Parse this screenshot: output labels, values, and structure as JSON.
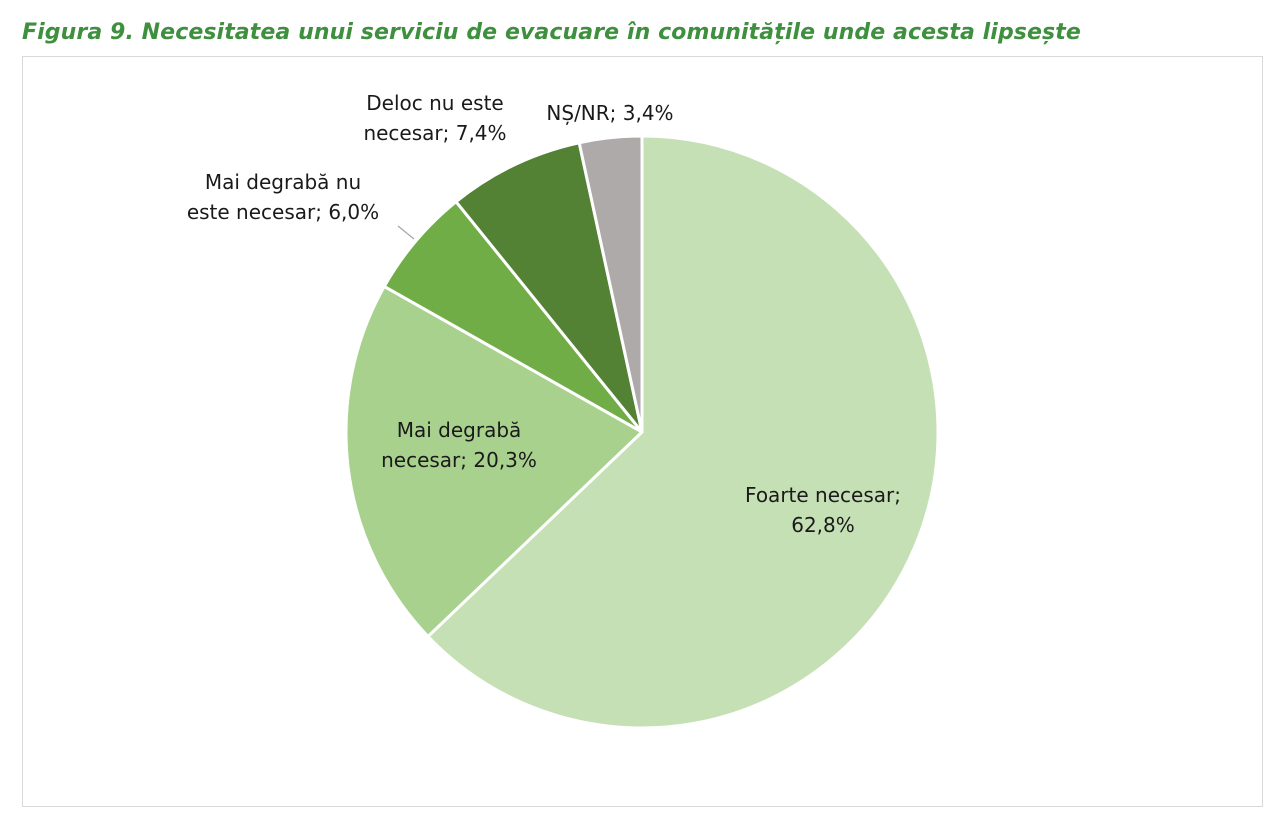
{
  "figure": {
    "title": "Figura 9. Necesitatea unui serviciu de evacuare în comunitățile unde acesta lipsește"
  },
  "chart_data": {
    "type": "pie",
    "start_angle_deg": 0,
    "direction": "clockwise",
    "slices": [
      {
        "label_line1": "Foarte necesar;",
        "label_line2": "62,8%",
        "name": "Foarte necesar",
        "value": 62.8,
        "color": "#c5e0b4"
      },
      {
        "label_line1": "Mai degrabă",
        "label_line2": "necesar; 20,3%",
        "name": "Mai degrabă necesar",
        "value": 20.3,
        "color": "#a9d18e"
      },
      {
        "label_line1": "Mai degrabă nu",
        "label_line2": "este necesar; 6,0%",
        "name": "Mai degrabă nu este necesar",
        "value": 6.0,
        "color": "#70ad47"
      },
      {
        "label_line1": "Deloc nu este",
        "label_line2": "necesar; 7,4%",
        "name": "Deloc nu este necesar",
        "value": 7.4,
        "color": "#548235"
      },
      {
        "label_line1": "NȘ/NR; 3,4%",
        "label_line2": "",
        "name": "NȘ/NR",
        "value": 3.4,
        "color": "#aeaaaa"
      }
    ]
  }
}
